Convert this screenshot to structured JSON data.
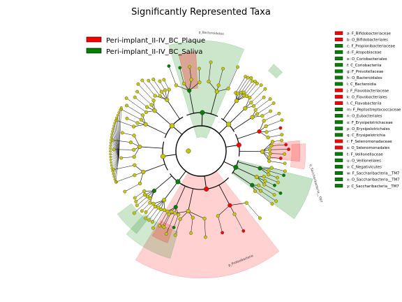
{
  "chart_data": {
    "type": "cladogram",
    "title": "Significantly Represented Taxa",
    "colors": {
      "Peri-implant_II-IV_BC_Plaque": "#ff0000",
      "Peri-implant_II-IV_BC_Saliva": "#008000",
      "non_significant_node": "#c8c800"
    },
    "legend": [
      {
        "label": "Peri-implant_II-IV_BC_Plaque",
        "color": "#ff0000"
      },
      {
        "label": "Peri-implant_II-IV_BC_Saliva",
        "color": "#008000"
      }
    ],
    "taxa_key": [
      {
        "code": "a",
        "name": "F_Bifidobacteriaceae",
        "group": "Peri-implant_II-IV_BC_Plaque"
      },
      {
        "code": "b",
        "name": "O_Bifidobacteriales",
        "group": "Peri-implant_II-IV_BC_Plaque"
      },
      {
        "code": "c",
        "name": "F_Propionibacteriaceae",
        "group": "Peri-implant_II-IV_BC_Saliva"
      },
      {
        "code": "d",
        "name": "F_Atopobiaceae",
        "group": "Peri-implant_II-IV_BC_Saliva"
      },
      {
        "code": "e",
        "name": "O_Coriobacteriales",
        "group": "Peri-implant_II-IV_BC_Saliva"
      },
      {
        "code": "f",
        "name": "C_Coriobacteriia",
        "group": "Peri-implant_II-IV_BC_Saliva"
      },
      {
        "code": "g",
        "name": "F_Prevotellaceae",
        "group": "Peri-implant_II-IV_BC_Saliva"
      },
      {
        "code": "h",
        "name": "O_Bacteroidales",
        "group": "Peri-implant_II-IV_BC_Saliva"
      },
      {
        "code": "i",
        "name": "C_Bacteroidia",
        "group": "Peri-implant_II-IV_BC_Saliva"
      },
      {
        "code": "j",
        "name": "F_Flavobacteriaceae",
        "group": "Peri-implant_II-IV_BC_Plaque"
      },
      {
        "code": "k",
        "name": "O_Flavobacteriales",
        "group": "Peri-implant_II-IV_BC_Plaque"
      },
      {
        "code": "l",
        "name": "C_Flavobacteriia",
        "group": "Peri-implant_II-IV_BC_Plaque"
      },
      {
        "code": "m",
        "name": "F_Peptostreptococcaceae",
        "group": "Peri-implant_II-IV_BC_Saliva"
      },
      {
        "code": "n",
        "name": "O_Eubacteriales",
        "group": "Peri-implant_II-IV_BC_Saliva"
      },
      {
        "code": "o",
        "name": "F_Erysipelotrichaceae",
        "group": "Peri-implant_II-IV_BC_Saliva"
      },
      {
        "code": "p",
        "name": "O_Erysipelotrichales",
        "group": "Peri-implant_II-IV_BC_Saliva"
      },
      {
        "code": "q",
        "name": "C_Erysipelotrichia",
        "group": "Peri-implant_II-IV_BC_Saliva"
      },
      {
        "code": "r",
        "name": "F_Selenomonadaceae",
        "group": "Peri-implant_II-IV_BC_Plaque"
      },
      {
        "code": "s",
        "name": "O_Selenomonadales",
        "group": "Peri-implant_II-IV_BC_Plaque"
      },
      {
        "code": "t",
        "name": "F_Veillonellaceae",
        "group": "Peri-implant_II-IV_BC_Saliva"
      },
      {
        "code": "u",
        "name": "O_Veillonellales",
        "group": "Peri-implant_II-IV_BC_Saliva"
      },
      {
        "code": "v",
        "name": "C_Negativicutes",
        "group": "Peri-implant_II-IV_BC_Saliva"
      },
      {
        "code": "w",
        "name": "F_Saccharibacteria__TM7",
        "group": "Peri-implant_II-IV_BC_Saliva"
      },
      {
        "code": "x",
        "name": "O_Saccharibacteria__TM7",
        "group": "Peri-implant_II-IV_BC_Saliva"
      },
      {
        "code": "y",
        "name": "C_Saccharibacteria__TM7",
        "group": "Peri-implant_II-IV_BC_Saliva"
      }
    ],
    "clade_labels": [
      {
        "text": "p_Bacteroidetes",
        "group": "Peri-implant_II-IV_BC_Saliva"
      },
      {
        "text": "p_Saccharibacteria__TM7",
        "group": "Peri-implant_II-IV_BC_Saliva"
      },
      {
        "text": "p_Proteobacteria",
        "group": "Peri-implant_II-IV_BC_Plaque"
      }
    ]
  }
}
